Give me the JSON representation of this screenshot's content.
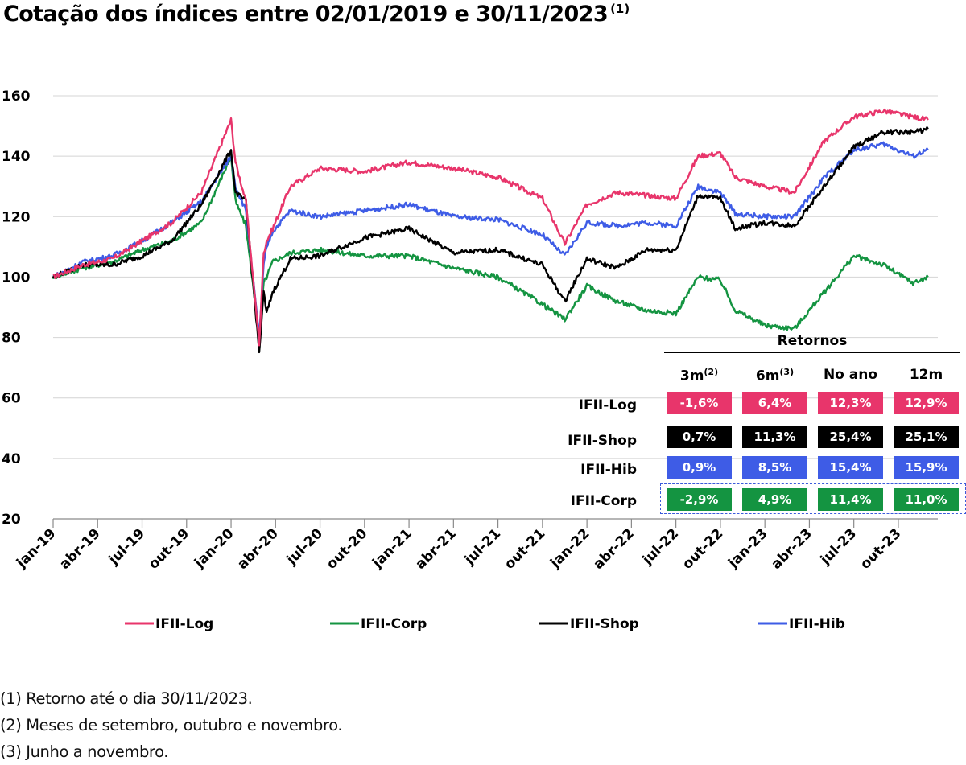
{
  "title": "Cotação dos índices entre 02/01/2019 e 30/11/2023",
  "title_note": "(1)",
  "chart_data": {
    "type": "line",
    "title": "Cotação dos índices entre 02/01/2019 e 30/11/2023",
    "ylim": [
      20,
      160
    ],
    "yticks": [
      "160",
      "140",
      "120",
      "100",
      "80",
      "60",
      "40",
      "20"
    ],
    "ytick_values": [
      160,
      140,
      120,
      100,
      80,
      60,
      40,
      20
    ],
    "xlabels": [
      "jan-19",
      "abr-19",
      "jul-19",
      "out-19",
      "jan-20",
      "abr-20",
      "jul-20",
      "out-20",
      "jan-21",
      "abr-21",
      "jul-21",
      "out-21",
      "jan-22",
      "abr-22",
      "jul-22",
      "out-22",
      "jan-23",
      "abr-23",
      "jul-23",
      "out-23"
    ],
    "grid": "horizontal",
    "legend_position": "bottom",
    "x_months": [
      0,
      2,
      4,
      6,
      8,
      10,
      12,
      12.3,
      13,
      13.9,
      14.2,
      14.4,
      14.8,
      16,
      18,
      21,
      24,
      27,
      30,
      33,
      34.5,
      36,
      38,
      40,
      42,
      43.5,
      45,
      46,
      48,
      50,
      52,
      54,
      56,
      58,
      59
    ],
    "series": [
      {
        "name": "IFII-Log",
        "color": "#e8356b",
        "values": [
          100,
          104,
          106,
          112,
          118,
          128,
          152,
          138,
          125,
          78,
          108,
          112,
          116,
          130,
          136,
          135,
          138,
          136,
          133,
          126,
          111,
          124,
          128,
          127,
          126,
          140,
          141,
          133,
          130,
          128,
          145,
          153,
          155,
          153,
          152
        ]
      },
      {
        "name": "IFII-Corp",
        "color": "#149441",
        "values": [
          100,
          103,
          105,
          109,
          112,
          118,
          140,
          125,
          117,
          80,
          98,
          100,
          105,
          108,
          109,
          107,
          107,
          103,
          100,
          91,
          86,
          97,
          92,
          89,
          88,
          100,
          99,
          89,
          84,
          83,
          95,
          107,
          104,
          98,
          100
        ]
      },
      {
        "name": "IFII-Shop",
        "color": "#000000",
        "values": [
          100,
          104,
          104,
          107,
          112,
          124,
          142,
          128,
          125,
          75,
          95,
          88,
          95,
          106,
          107,
          113,
          116,
          108,
          109,
          104,
          92,
          106,
          103,
          109,
          109,
          127,
          126,
          116,
          118,
          117,
          130,
          143,
          148,
          148,
          149
        ]
      },
      {
        "name": "IFII-Hib",
        "color": "#3e5ce6",
        "values": [
          100,
          105,
          107,
          112,
          118,
          125,
          140,
          130,
          122,
          80,
          104,
          110,
          115,
          122,
          120,
          122,
          124,
          120,
          119,
          114,
          107,
          118,
          117,
          118,
          117,
          130,
          128,
          121,
          120,
          120,
          133,
          142,
          144,
          140,
          142
        ]
      }
    ]
  },
  "returns": {
    "title": "Retornos",
    "columns": [
      "3m",
      "6m",
      "No ano",
      "12m"
    ],
    "column_notes": [
      "(2)",
      "(3)",
      "",
      ""
    ],
    "rows": [
      {
        "label": "IFII-Log",
        "color": "#e8356b",
        "values": [
          "-1,6%",
          "6,4%",
          "12,3%",
          "12,9%"
        ]
      },
      {
        "label": "IFII-Shop",
        "color": "#000000",
        "values": [
          "0,7%",
          "11,3%",
          "25,4%",
          "25,1%"
        ]
      },
      {
        "label": "IFII-Hib",
        "color": "#3e5ce6",
        "values": [
          "0,9%",
          "8,5%",
          "15,4%",
          "15,9%"
        ]
      },
      {
        "label": "IFII-Corp",
        "color": "#149441",
        "values": [
          "-2,9%",
          "4,9%",
          "11,4%",
          "11,0%"
        ]
      }
    ]
  },
  "legend": [
    "IFII-Log",
    "IFII-Corp",
    "IFII-Shop",
    "IFII-Hib"
  ],
  "footnotes": [
    "(1) Retorno até o dia 30/11/2023.",
    "(2) Meses de setembro, outubro e novembro.",
    "(3) Junho a novembro."
  ]
}
